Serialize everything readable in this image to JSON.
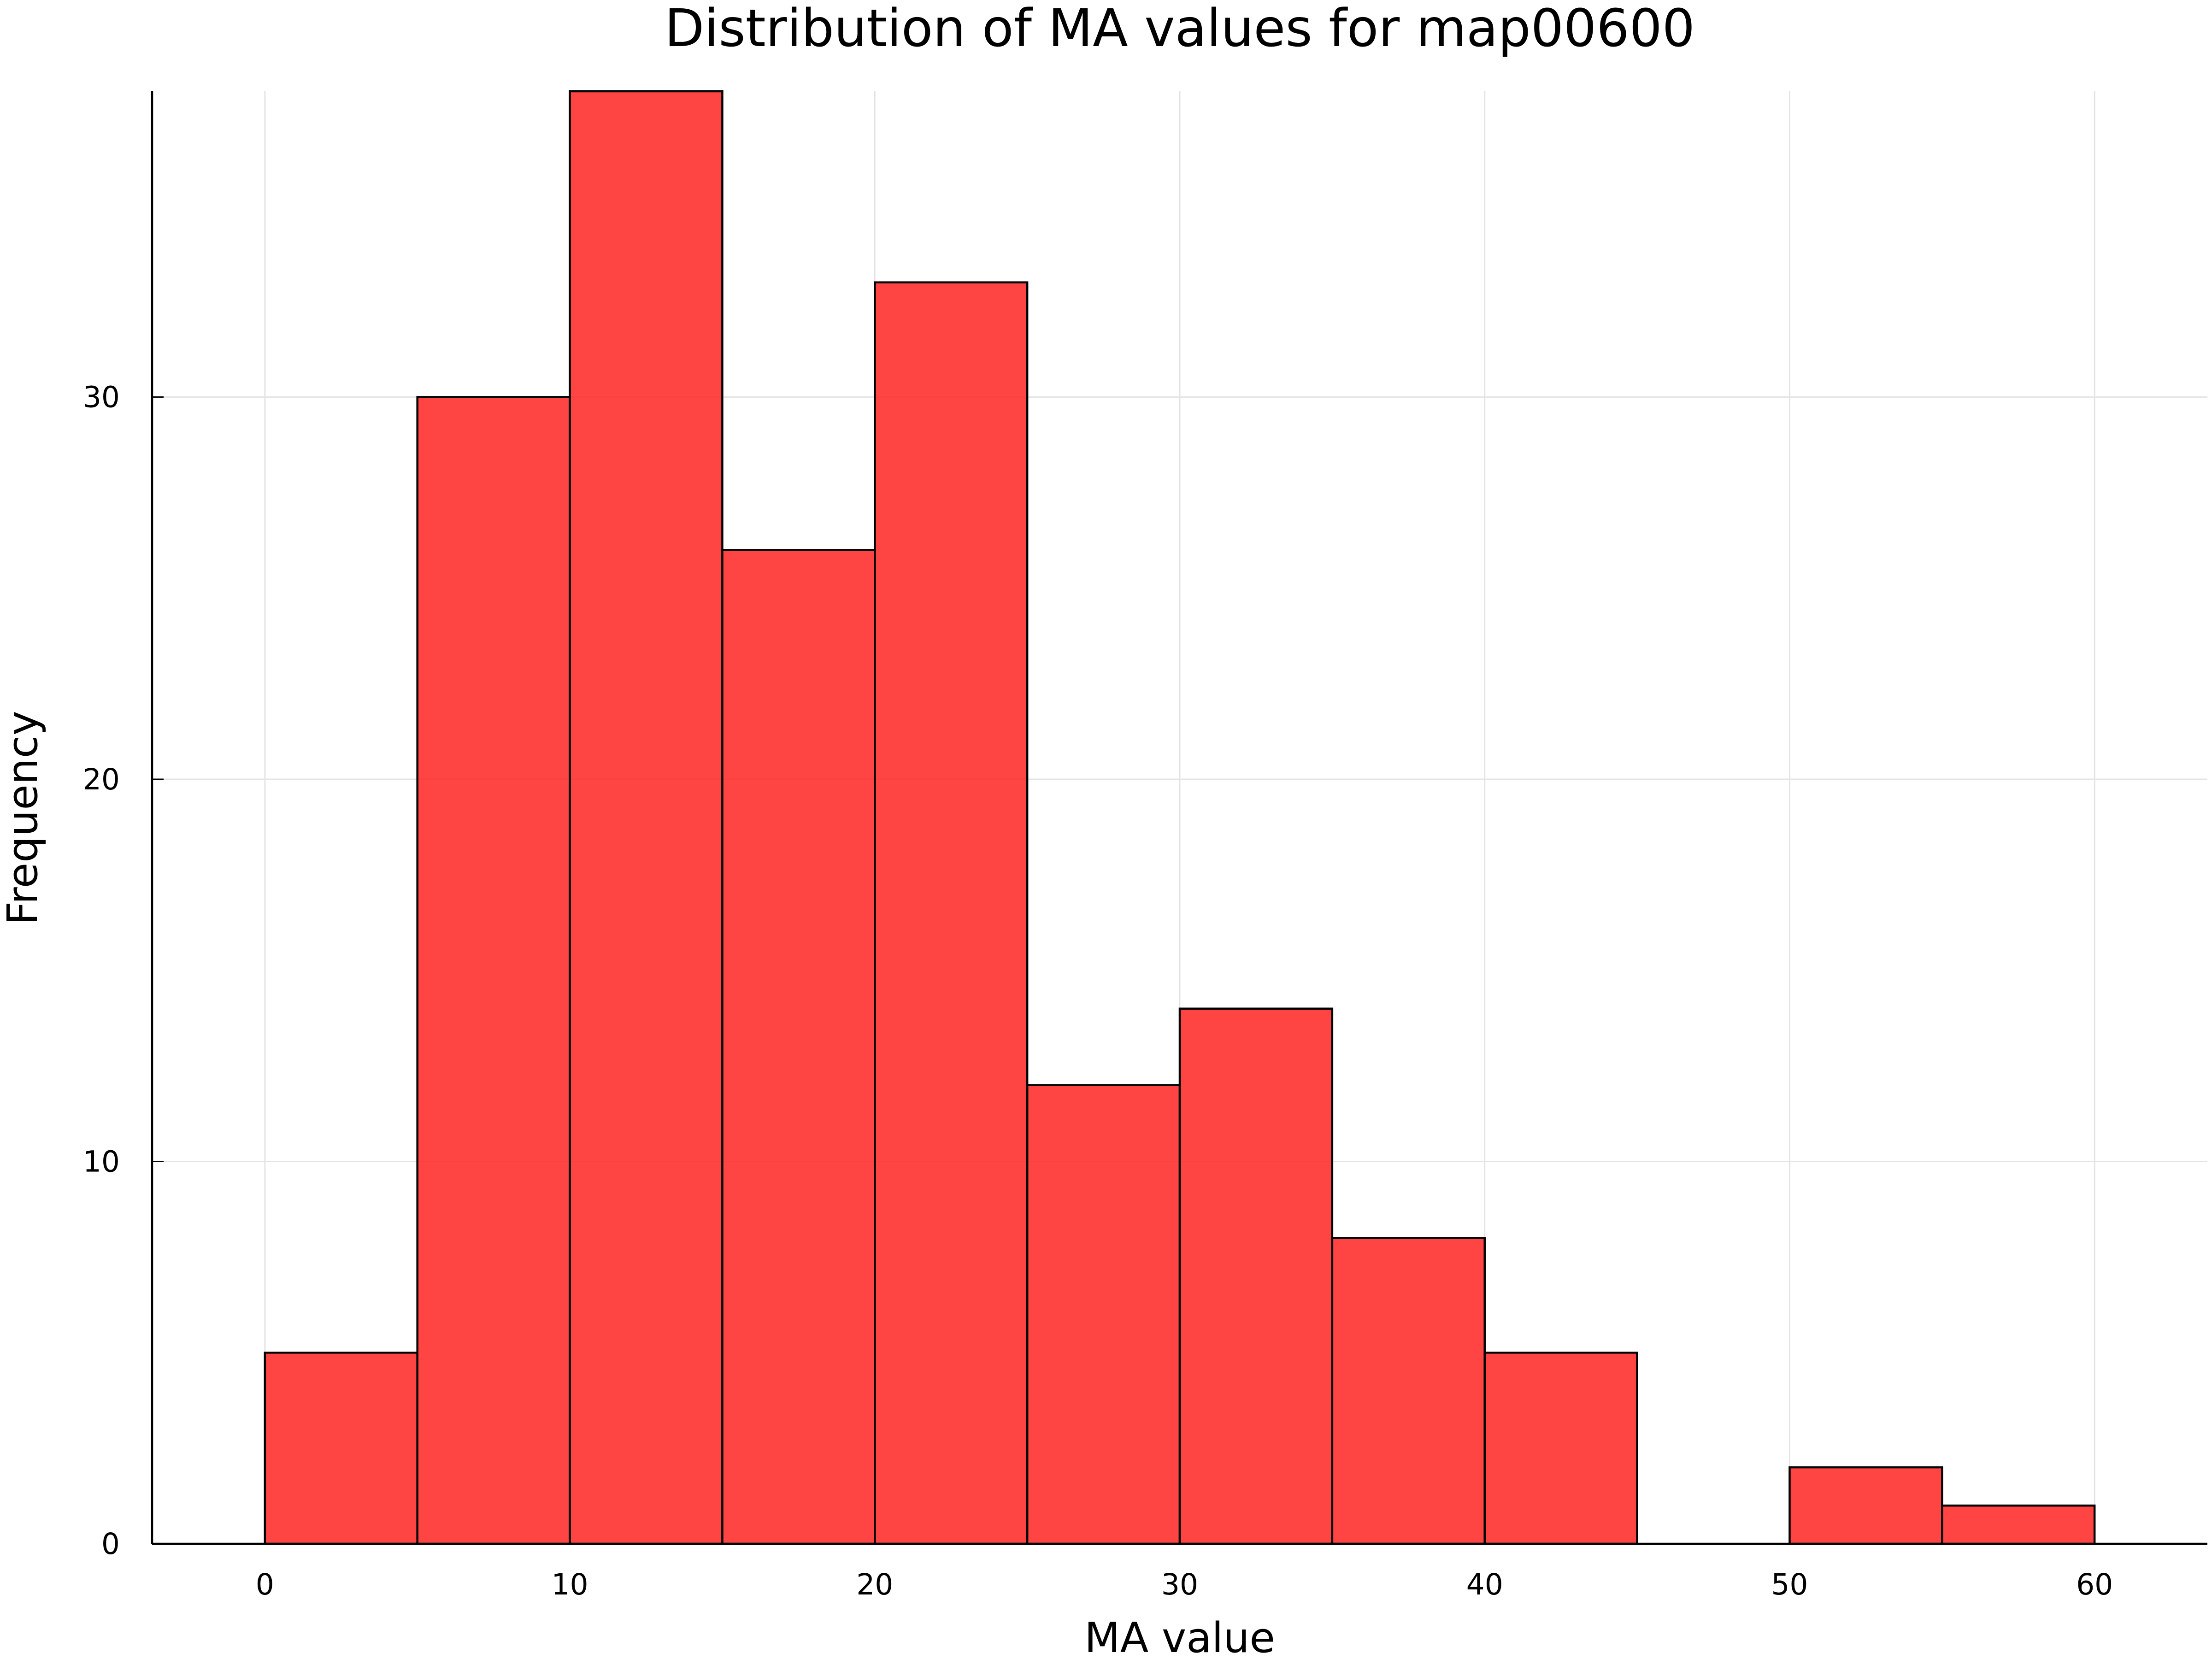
{
  "chart_data": {
    "type": "bar",
    "title": "Distribution of MA values for map00600",
    "xlabel": "MA value",
    "ylabel": "Frequency",
    "bin_edges": [
      0,
      5,
      10,
      15,
      20,
      25,
      30,
      35,
      40,
      45,
      50,
      55,
      60
    ],
    "values": [
      5,
      30,
      38,
      26,
      33,
      12,
      14,
      8,
      5,
      0,
      2,
      1
    ],
    "xlim": [
      -3.7,
      63.7
    ],
    "ylim": [
      0,
      38
    ],
    "xticks": [
      0,
      10,
      20,
      30,
      40,
      50,
      60
    ],
    "xtick_labels": [
      "0",
      "10",
      "20",
      "30",
      "40",
      "50",
      "60"
    ],
    "yticks": [
      0,
      10,
      20,
      30
    ],
    "ytick_labels": [
      "0",
      "10",
      "20",
      "30"
    ],
    "grid": true,
    "legend": "none",
    "bar_color": "#ff2a2a",
    "edge_color": "#000000"
  }
}
